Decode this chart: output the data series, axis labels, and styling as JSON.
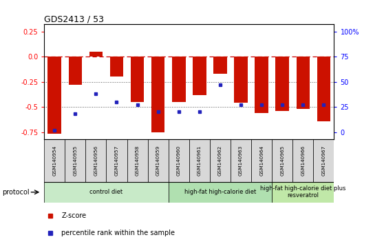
{
  "title": "GDS2413 / 53",
  "samples": [
    "GSM140954",
    "GSM140955",
    "GSM140956",
    "GSM140957",
    "GSM140958",
    "GSM140959",
    "GSM140960",
    "GSM140961",
    "GSM140962",
    "GSM140963",
    "GSM140964",
    "GSM140965",
    "GSM140966",
    "GSM140967"
  ],
  "z_scores": [
    -0.77,
    -0.28,
    0.05,
    -0.2,
    -0.45,
    -0.75,
    -0.45,
    -0.38,
    -0.17,
    -0.46,
    -0.56,
    -0.54,
    -0.52,
    -0.64
  ],
  "percentile_ranks": [
    2,
    18,
    38,
    30,
    27,
    20,
    20,
    20,
    47,
    27,
    27,
    27,
    27,
    27
  ],
  "bar_color": "#cc1100",
  "dot_color": "#2222bb",
  "zero_line_color": "#cc0000",
  "dotted_line_color": "#555555",
  "ylim": [
    -0.82,
    0.32
  ],
  "yticks_left": [
    0.25,
    0.0,
    -0.25,
    -0.5,
    -0.75
  ],
  "yticks_right_vals": [
    "100%",
    "75",
    "50",
    "25",
    "0"
  ],
  "yticks_right_pos": [
    0.25,
    0.0,
    -0.25,
    -0.5,
    -0.75
  ],
  "groups": [
    {
      "label": "control diet",
      "start": 0,
      "end": 5,
      "color": "#c8eac8"
    },
    {
      "label": "high-fat high-calorie diet",
      "start": 6,
      "end": 10,
      "color": "#b0e0b0"
    },
    {
      "label": "high-fat high-calorie diet plus\nresveratrol",
      "start": 11,
      "end": 13,
      "color": "#c0e8a8"
    }
  ],
  "legend_z_label": "Z-score",
  "legend_pct_label": "percentile rank within the sample",
  "protocol_label": "protocol",
  "bg_color": "#ffffff",
  "sample_box_color": "#d8d8d8"
}
